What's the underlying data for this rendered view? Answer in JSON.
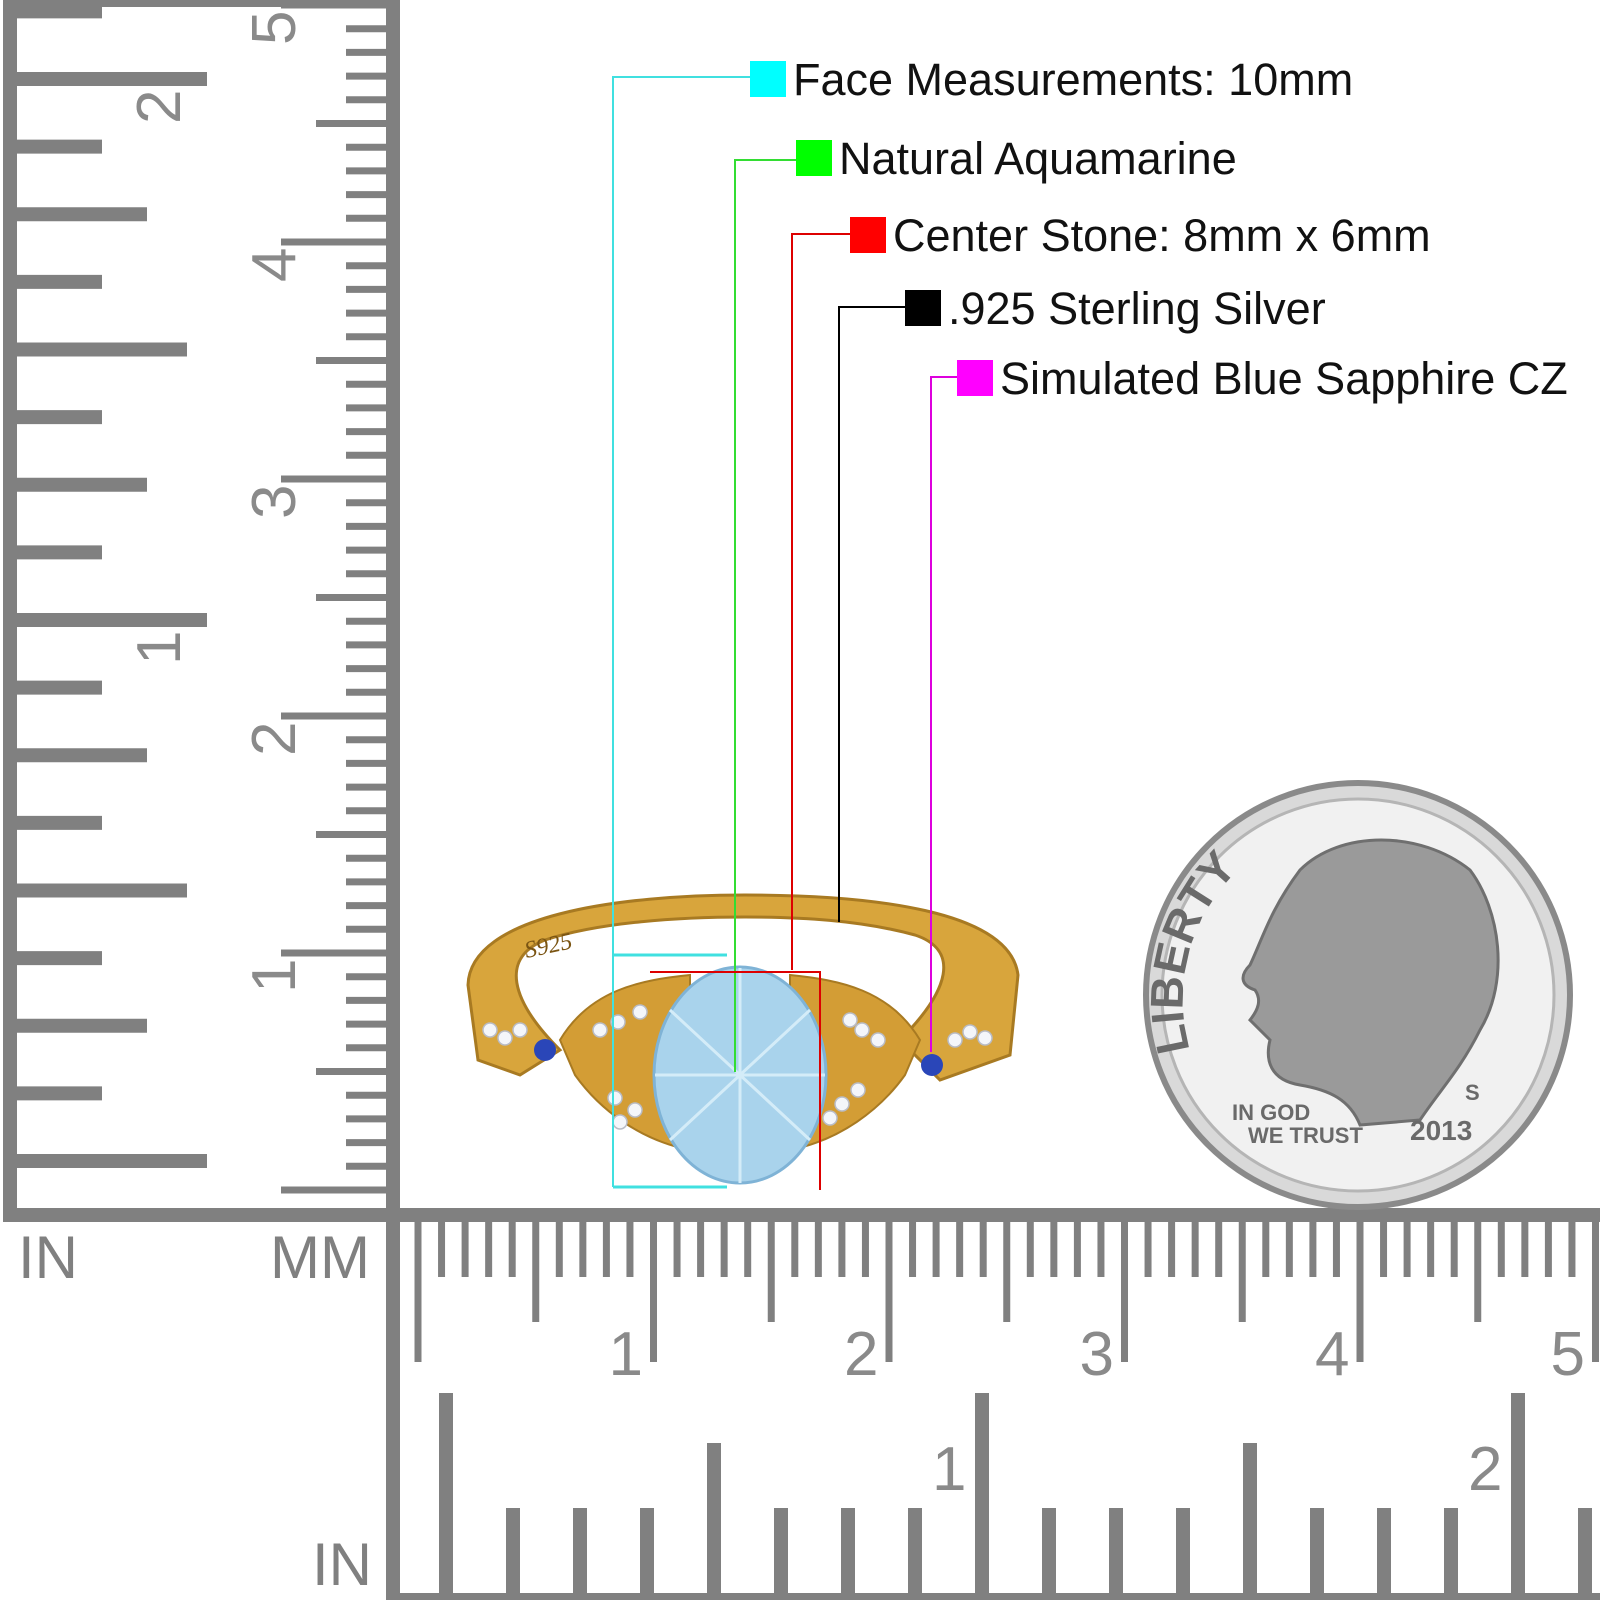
{
  "legend": [
    {
      "label": "Face Measurements: 10mm",
      "color": "#00ffff",
      "line_color": "#40e0e0"
    },
    {
      "label": "Natural Aquamarine",
      "color": "#00ff00",
      "line_color": "#33dd33"
    },
    {
      "label": "Center Stone: 8mm x 6mm",
      "color": "#ff0000",
      "line_color": "#dd0000"
    },
    {
      "label": ".925 Sterling Silver",
      "color": "#000000",
      "line_color": "#000000"
    },
    {
      "label": "Simulated Blue Sapphire CZ",
      "color": "#ff00ff",
      "line_color": "#dd00dd"
    }
  ],
  "rulers": {
    "unit_in_left": "IN",
    "unit_mm": "MM",
    "unit_in_bottom": "IN",
    "vertical_inch_labels": [
      "1",
      "2"
    ],
    "vertical_cm_labels": [
      "1",
      "2",
      "3",
      "4",
      "5"
    ],
    "horizontal_cm_labels": [
      "1",
      "2",
      "3",
      "4",
      "5"
    ],
    "horizontal_inch_labels": [
      "1",
      "2"
    ],
    "color": "#808080"
  },
  "ring": {
    "engraving": "S925",
    "metal_color": "#d8a53c",
    "stone_color": "#a9d3ec",
    "sapphire_color": "#2a46b8"
  },
  "coin": {
    "liberty": "LIBERTY",
    "motto_line1": "IN GOD",
    "motto_line2": "WE TRUST",
    "year": "2013",
    "mint_mark": "S"
  }
}
